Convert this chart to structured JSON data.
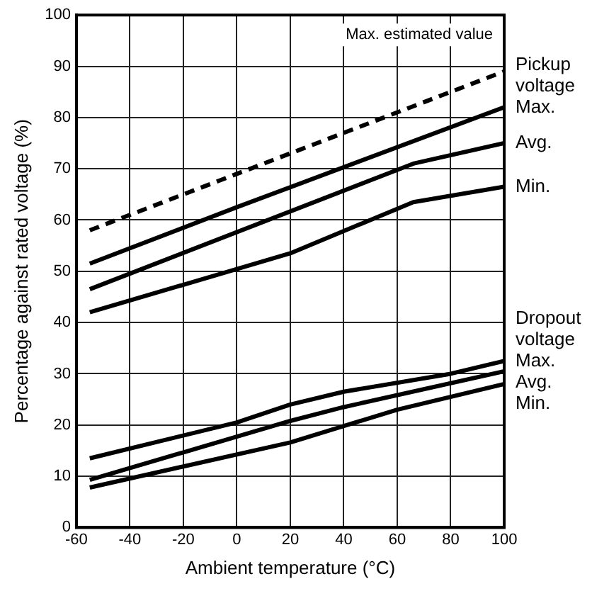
{
  "chart_data": {
    "type": "line",
    "xlabel": "Ambient temperature (°C)",
    "ylabel": "Percentage against rated voltage (%)",
    "xlim": [
      -60,
      100
    ],
    "xticks": [
      -60,
      -40,
      -20,
      0,
      20,
      40,
      60,
      80,
      100
    ],
    "ylim": [
      0,
      100
    ],
    "yticks": [
      0,
      10,
      20,
      30,
      40,
      50,
      60,
      70,
      80,
      90,
      100
    ],
    "grid": true,
    "legend": false,
    "marker": "none",
    "annotations": [
      "Max. estimated value",
      "Pickup voltage",
      "Dropout voltage"
    ],
    "series": [
      {
        "color": "#000000",
        "line_style": "dashed",
        "x": [
          -55,
          0,
          100
        ],
        "values": [
          58,
          69,
          89
        ]
      },
      {
        "name": "Max.",
        "color": "#000000",
        "line_style": "solid",
        "x": [
          -55,
          0,
          100
        ],
        "values": [
          51.5,
          62.5,
          82
        ]
      },
      {
        "name": "Avg.",
        "color": "#000000",
        "line_style": "solid",
        "x": [
          -55,
          66,
          100
        ],
        "values": [
          46.5,
          71,
          75
        ]
      },
      {
        "name": "Min.",
        "color": "#000000",
        "line_style": "solid",
        "x": [
          -55,
          20,
          66,
          100
        ],
        "values": [
          42,
          53.5,
          63.5,
          66.5
        ]
      },
      {
        "name": "Max.",
        "color": "#000000",
        "line_style": "solid",
        "x": [
          -55,
          0,
          20,
          40,
          80,
          100
        ],
        "values": [
          13.5,
          20.5,
          24,
          26.5,
          30,
          32.5
        ]
      },
      {
        "name": "Avg.",
        "color": "#000000",
        "line_style": "solid",
        "x": [
          -55,
          20,
          40,
          100
        ],
        "values": [
          9.3,
          20.8,
          23.5,
          30.5
        ]
      },
      {
        "name": "Min.",
        "color": "#000000",
        "line_style": "solid",
        "x": [
          -55,
          20,
          60,
          100
        ],
        "values": [
          7.8,
          16.6,
          23,
          28
        ]
      }
    ]
  }
}
